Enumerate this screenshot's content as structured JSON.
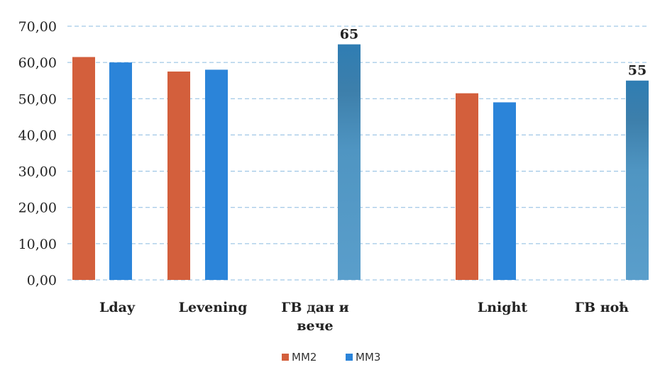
{
  "chart_data": {
    "type": "bar",
    "categories": [
      "Lday",
      "Levening",
      "ГВ дан и вече",
      "Lnight",
      "ГВ ноћ"
    ],
    "series": [
      {
        "name": "ММ2",
        "color": "#d35f3c",
        "values": [
          61.5,
          57.5,
          null,
          51.5,
          null
        ]
      },
      {
        "name": "ММ3",
        "color": "#2b84d9",
        "values": [
          60.0,
          58.0,
          null,
          49.0,
          null
        ]
      },
      {
        "color": "#2f7db3",
        "values": [
          null,
          null,
          65,
          null,
          55
        ],
        "data_labels": [
          null,
          null,
          "65",
          null,
          "55"
        ]
      }
    ],
    "ylim": [
      0,
      70
    ],
    "y_ticks": [
      "0,00",
      "10,00",
      "20,00",
      "30,00",
      "40,00",
      "50,00",
      "60,00",
      "70,00"
    ],
    "grid": "horizontal-dashed",
    "legend_position": "bottom",
    "title": "",
    "xlabel": "",
    "ylabel": ""
  }
}
